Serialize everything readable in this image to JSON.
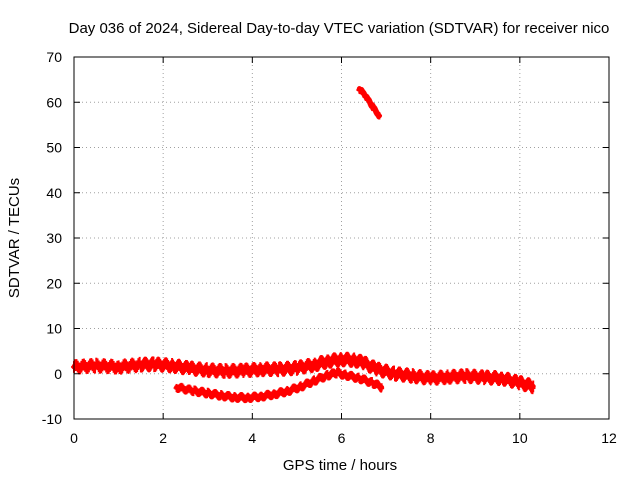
{
  "chart_data": {
    "type": "scatter",
    "title": "Day 036 of 2024, Sidereal Day-to-day VTEC variation (SDTVAR) for receiver nico",
    "xlabel": "GPS time / hours",
    "ylabel": "SDTVAR / TECUs",
    "xlim": [
      0,
      12
    ],
    "ylim": [
      -10,
      70
    ],
    "xticks": [
      0,
      2,
      4,
      6,
      8,
      10,
      12
    ],
    "yticks": [
      -10,
      0,
      10,
      20,
      30,
      40,
      50,
      60,
      70
    ],
    "grid": true,
    "legend": "none",
    "colors": {
      "series": "#ff0000",
      "grid": "#a0a0a0",
      "axes": "#000000"
    },
    "series": [
      {
        "name": "track-1",
        "band": 1.3,
        "x": [
          0.0,
          0.5,
          1.0,
          1.5,
          1.8,
          2.2,
          2.6,
          3.0,
          3.4,
          3.8,
          4.2,
          4.6,
          5.0,
          5.4,
          5.7,
          6.0,
          6.3,
          6.5,
          6.8,
          7.2,
          7.6,
          8.0,
          8.4,
          8.8,
          9.2,
          9.6,
          10.0,
          10.3
        ],
        "y": [
          1.5,
          1.8,
          1.5,
          2.0,
          2.1,
          1.8,
          1.2,
          0.8,
          0.6,
          0.7,
          1.0,
          1.0,
          1.3,
          2.0,
          2.8,
          3.2,
          3.0,
          2.4,
          1.0,
          0.0,
          -0.5,
          -1.0,
          -0.7,
          -0.5,
          -0.8,
          -1.0,
          -2.0,
          -2.8
        ]
      },
      {
        "name": "track-2",
        "band": 0.9,
        "x": [
          2.3,
          2.7,
          3.0,
          3.3,
          3.6,
          3.9,
          4.2,
          4.5,
          4.8,
          5.1,
          5.4,
          5.7,
          5.9,
          6.1,
          6.4,
          6.7,
          6.9
        ],
        "y": [
          -3.0,
          -3.8,
          -4.3,
          -4.8,
          -5.2,
          -5.3,
          -5.0,
          -4.5,
          -3.8,
          -2.8,
          -1.5,
          -0.3,
          0.2,
          -0.3,
          -1.0,
          -2.0,
          -3.0
        ]
      },
      {
        "name": "track-3",
        "band": 0.8,
        "x": [
          6.4,
          6.55,
          6.7,
          6.85
        ],
        "y": [
          63.0,
          61.2,
          59.0,
          57.0
        ]
      }
    ]
  }
}
